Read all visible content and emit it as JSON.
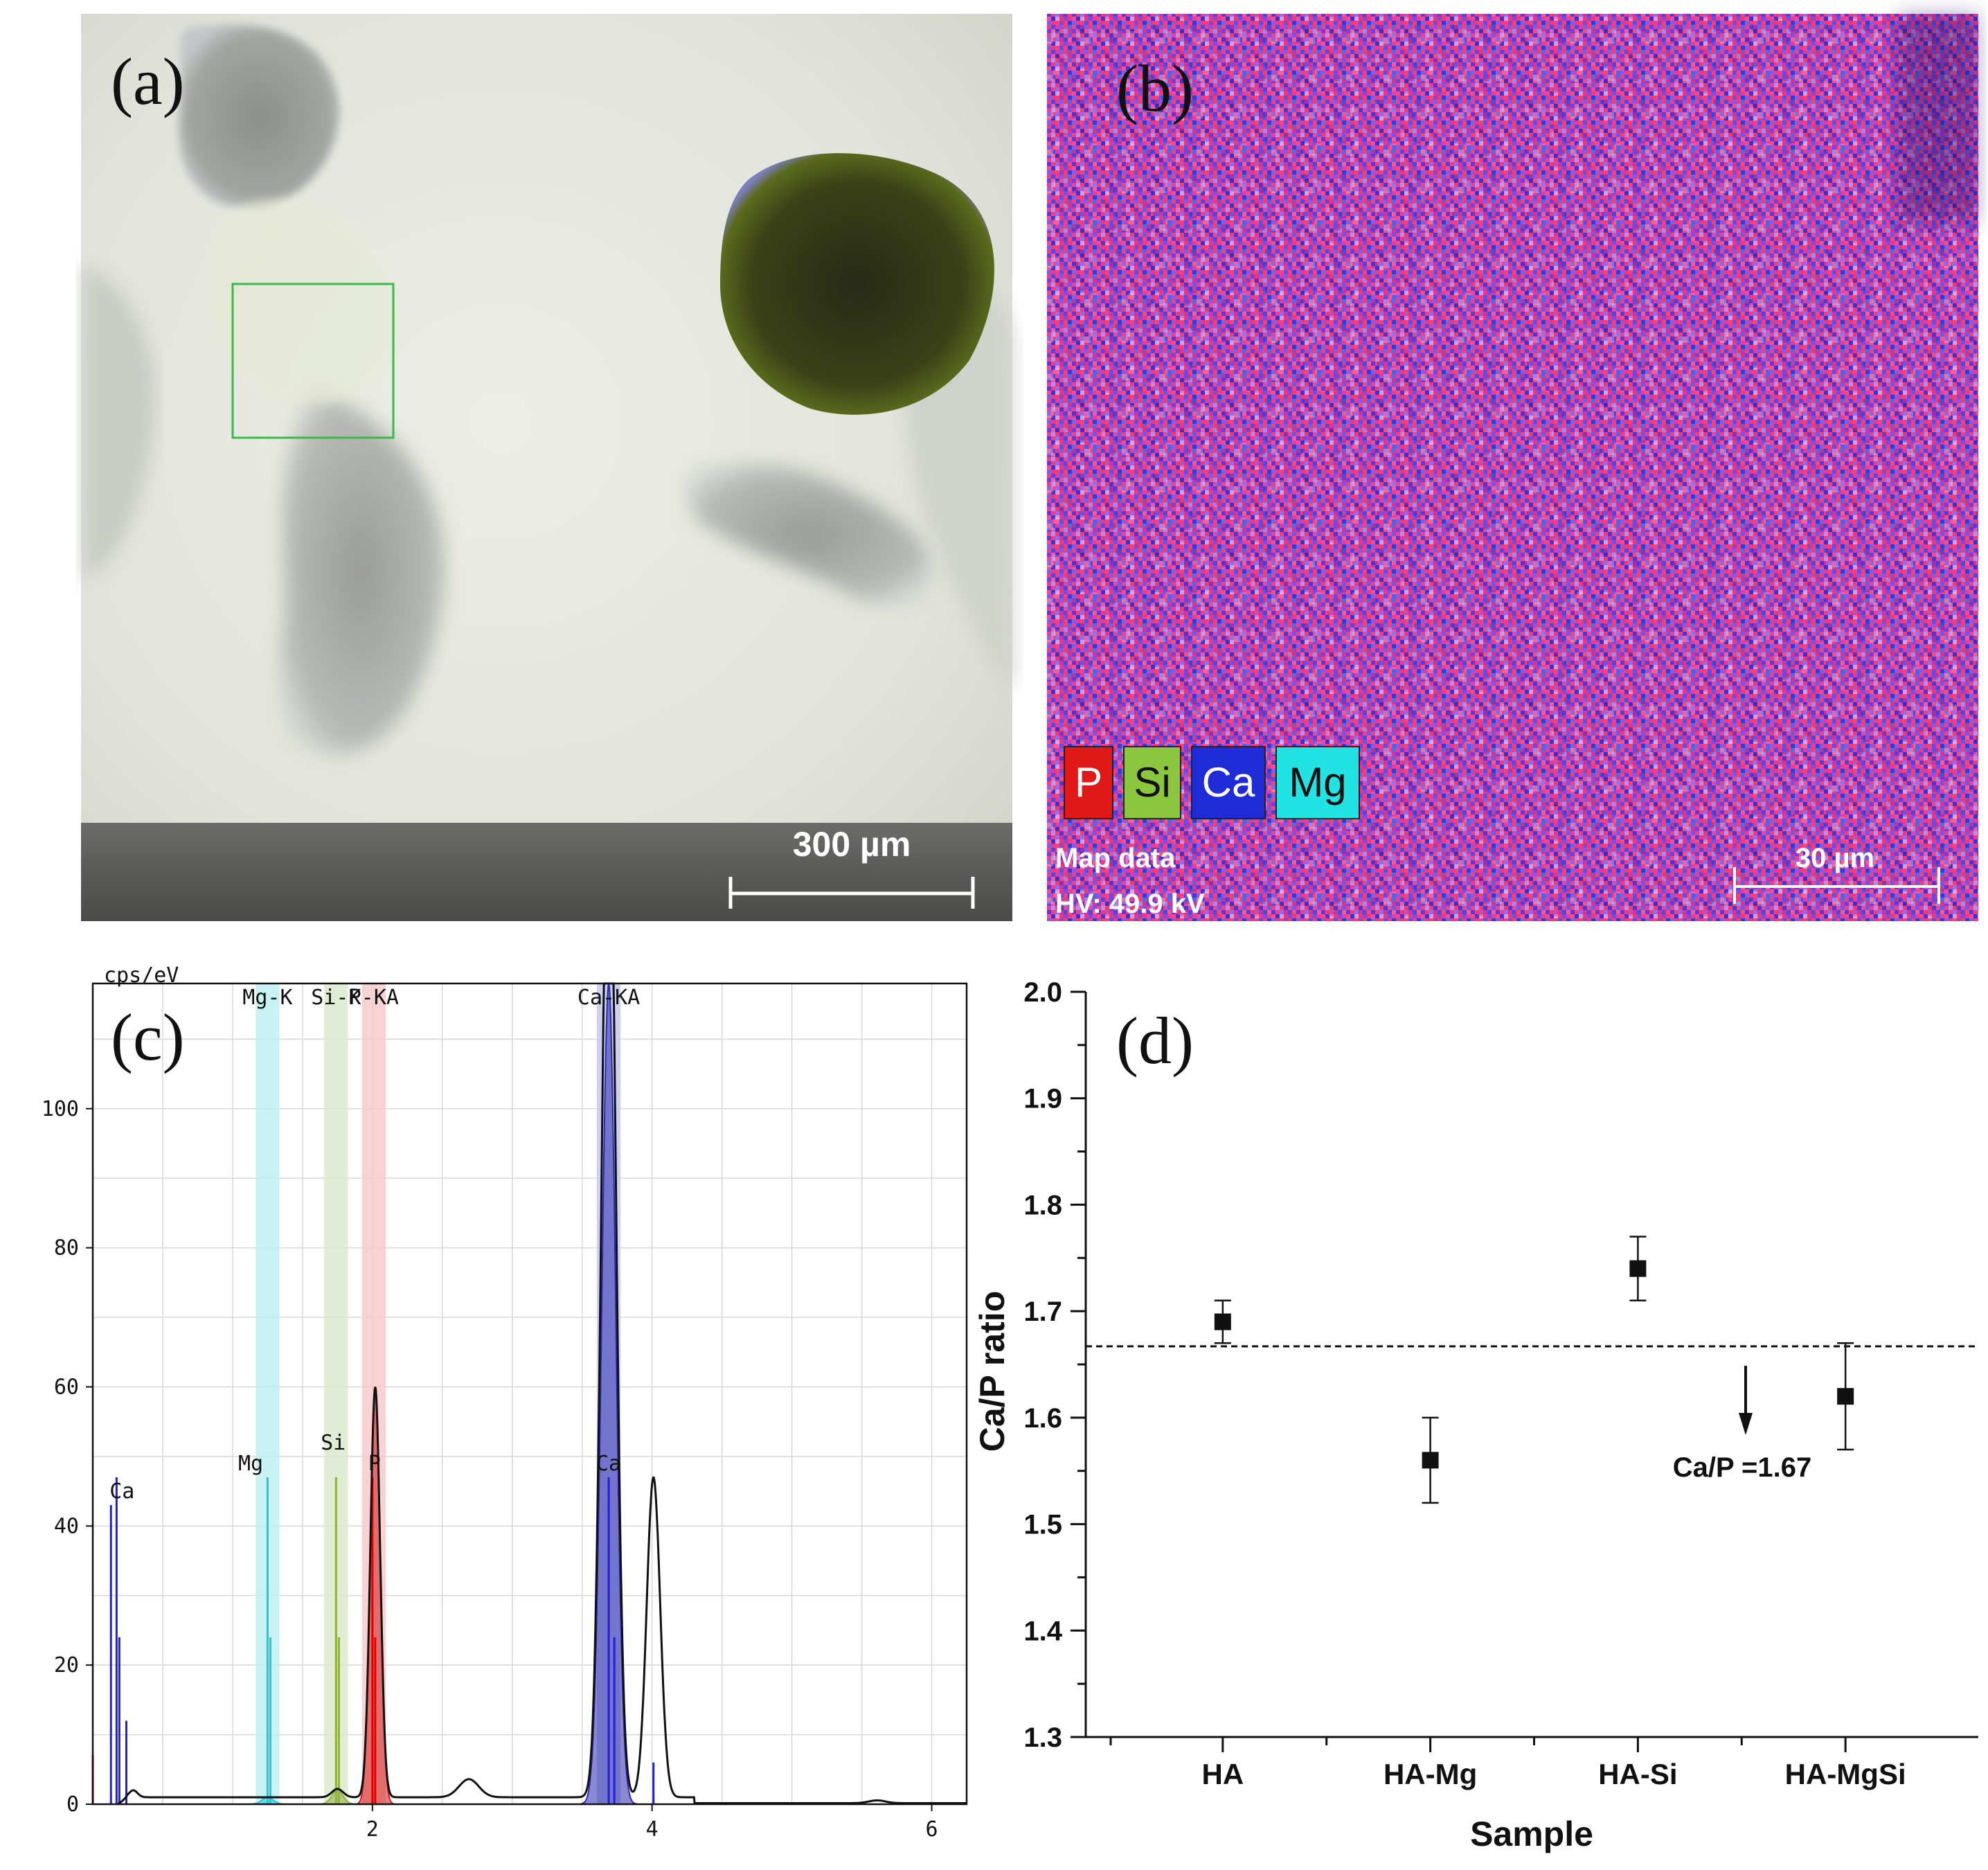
{
  "panels": {
    "a": {
      "label": "(a)",
      "scale_bar": "300 µm"
    },
    "b": {
      "label": "(b)",
      "legend": [
        {
          "symbol": "P",
          "color": "#e01818"
        },
        {
          "symbol": "Si",
          "color": "#8bc63e"
        },
        {
          "symbol": "Ca",
          "color": "#1f2bd6"
        },
        {
          "symbol": "Mg",
          "color": "#22e3e3"
        }
      ],
      "map_label": "Map data",
      "hv_label": "HV: 49.9 kV",
      "scale_bar": "30 µm"
    },
    "c": {
      "label": "(c)"
    },
    "d": {
      "label": "(d)",
      "reference_label": "Ca/P =1.67"
    }
  },
  "chart_data": [
    {
      "type": "line",
      "panel": "c",
      "ylabel": "cps/eV",
      "xlim": [
        0,
        6.25
      ],
      "ylim": [
        0,
        118
      ],
      "x_ticks": [
        2,
        4,
        6
      ],
      "y_ticks": [
        0,
        20,
        40,
        60,
        80,
        100
      ],
      "grid": true,
      "element_bands": [
        {
          "label": "Mg-K",
          "x": 1.25,
          "color": "#bdeff0"
        },
        {
          "label": "Si-K",
          "x": 1.74,
          "color": "#dde8cc"
        },
        {
          "label": "P-KA",
          "x": 2.01,
          "color": "#f8cbcb"
        },
        {
          "label": "Ca-KA",
          "x": 3.69,
          "color": "#c4c8ec"
        }
      ],
      "peak_labels": [
        {
          "label": "Ca",
          "x": 0.12,
          "y": 44
        },
        {
          "label": "Mg",
          "x": 1.04,
          "y": 48
        },
        {
          "label": "Si",
          "x": 1.63,
          "y": 51
        },
        {
          "label": "P",
          "x": 1.97,
          "y": 48
        },
        {
          "label": "Ca",
          "x": 3.6,
          "y": 48
        }
      ],
      "marker_lines": [
        {
          "x": 0.0,
          "h": 7,
          "color": "#e00000"
        },
        {
          "x": 0.13,
          "h": 43,
          "color": "#2020d0"
        },
        {
          "x": 0.17,
          "h": 47,
          "color": "#2020d0"
        },
        {
          "x": 0.19,
          "h": 24,
          "color": "#2020d0"
        },
        {
          "x": 0.24,
          "h": 12,
          "color": "#2020d0"
        },
        {
          "x": 1.25,
          "h": 47,
          "color": "#20c8d8"
        },
        {
          "x": 1.27,
          "h": 24,
          "color": "#20c8d8"
        },
        {
          "x": 1.74,
          "h": 47,
          "color": "#90b040"
        },
        {
          "x": 1.76,
          "h": 24,
          "color": "#90b040"
        },
        {
          "x": 2.0,
          "h": 47,
          "color": "#e00000"
        },
        {
          "x": 2.02,
          "h": 24,
          "color": "#e00000"
        },
        {
          "x": 3.69,
          "h": 47,
          "color": "#2020d0"
        },
        {
          "x": 3.73,
          "h": 24,
          "color": "#2020d0"
        },
        {
          "x": 4.01,
          "h": 6,
          "color": "#2020d0"
        }
      ],
      "filled_peaks": [
        {
          "center": 2.02,
          "height": 60,
          "width": 0.035,
          "color": "#d01818"
        },
        {
          "center": 3.69,
          "height": 118,
          "width": 0.05,
          "color": "#2a2ab0"
        },
        {
          "center": 1.25,
          "height": 1,
          "width": 0.04,
          "color": "#20c8d8"
        },
        {
          "center": 1.75,
          "height": 2,
          "width": 0.04,
          "color": "#90b040"
        }
      ],
      "spectrum": {
        "baseline": 1.0,
        "peaks": [
          {
            "center": 0.29,
            "height": 1.0,
            "width": 0.03
          },
          {
            "center": 1.75,
            "height": 1.2,
            "width": 0.04
          },
          {
            "center": 2.02,
            "height": 59,
            "width": 0.035
          },
          {
            "center": 2.69,
            "height": 2.6,
            "width": 0.07
          },
          {
            "center": 3.69,
            "height": 150,
            "width": 0.05
          },
          {
            "center": 4.01,
            "height": 46,
            "width": 0.048
          },
          {
            "center": 5.61,
            "height": 0.4,
            "width": 0.06
          }
        ]
      }
    },
    {
      "type": "scatter",
      "panel": "d",
      "xlabel": "Sample",
      "ylabel": "Ca/P ratio",
      "categories": [
        "HA",
        "HA-Mg",
        "HA-Si",
        "HA-MgSi"
      ],
      "values": [
        1.69,
        1.56,
        1.74,
        1.62
      ],
      "errors": [
        0.02,
        0.04,
        0.03,
        0.05
      ],
      "ylim": [
        1.3,
        2.0
      ],
      "y_ticks": [
        "1.3",
        "1.4",
        "1.5",
        "1.6",
        "1.7",
        "1.8",
        "1.9",
        "2.0"
      ],
      "reference_line": 1.667,
      "grid": false
    }
  ]
}
